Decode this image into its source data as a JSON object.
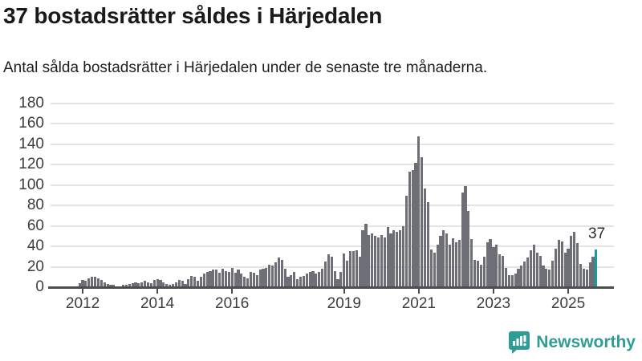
{
  "header": {
    "title": "37 bostadsrätter såldes i Härjedalen",
    "subtitle": "Antal sålda bostadsrätter i Härjedalen under de senaste tre månaderna."
  },
  "chart_data": {
    "type": "bar",
    "title": "37 bostadsrätter såldes i Härjedalen",
    "subtitle": "Antal sålda bostadsrätter i Härjedalen under de senaste tre månaderna.",
    "x_start_month": "2011-12",
    "x_end_month": "2025-10",
    "x_tick_labels": [
      "2012",
      "2014",
      "2016",
      "2019",
      "2021",
      "2023",
      "2025"
    ],
    "y_tick_labels": [
      "0",
      "20",
      "40",
      "60",
      "80",
      "100",
      "120",
      "140",
      "160",
      "180"
    ],
    "y_ticks": [
      0,
      20,
      40,
      60,
      80,
      100,
      120,
      140,
      160,
      180
    ],
    "ylim": [
      0,
      180
    ],
    "grid": "horizontal",
    "legend": "none",
    "values": [
      4,
      7,
      6,
      9,
      10,
      10,
      9,
      7,
      5,
      3,
      2,
      2,
      1,
      1,
      2,
      2,
      3,
      4,
      5,
      4,
      5,
      6,
      5,
      4,
      7,
      8,
      7,
      5,
      3,
      2,
      3,
      5,
      7,
      6,
      3,
      8,
      11,
      10,
      6,
      10,
      13,
      15,
      16,
      17,
      17,
      14,
      18,
      16,
      15,
      19,
      14,
      17,
      13,
      10,
      9,
      15,
      14,
      12,
      17,
      18,
      19,
      22,
      21,
      24,
      29,
      27,
      18,
      10,
      12,
      15,
      8,
      10,
      11,
      13,
      15,
      16,
      13,
      15,
      18,
      25,
      32,
      30,
      16,
      8,
      15,
      33,
      26,
      35,
      35,
      36,
      30,
      56,
      62,
      51,
      53,
      50,
      49,
      51,
      49,
      59,
      53,
      56,
      54,
      56,
      60,
      90,
      113,
      115,
      122,
      148,
      127,
      97,
      83,
      37,
      34,
      42,
      50,
      56,
      53,
      42,
      48,
      44,
      46,
      93,
      99,
      75,
      47,
      27,
      26,
      22,
      30,
      44,
      47,
      39,
      42,
      32,
      31,
      19,
      12,
      12,
      13,
      18,
      21,
      25,
      29,
      36,
      42,
      34,
      31,
      21,
      18,
      17,
      26,
      38,
      46,
      45,
      34,
      38,
      50,
      54,
      43,
      23,
      18,
      17,
      24,
      30,
      37
    ],
    "highlight_last_value": 37,
    "annotation": {
      "text": "37"
    },
    "colors": {
      "bar": "#6e6e76",
      "highlight": "#169e9c",
      "grid": "#e4e4e4",
      "axis": "#4d4d4d"
    }
  },
  "branding": {
    "logo_text": "Newsworthy",
    "logo_color": "#2f9d96",
    "logo_icon": "bar-chart-speech-bubble-icon"
  }
}
